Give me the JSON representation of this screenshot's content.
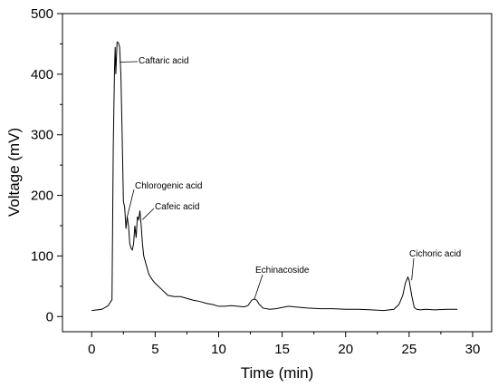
{
  "chart_data": {
    "type": "line",
    "title": "",
    "xlabel": "Time (min)",
    "ylabel": "Voltage (mV)",
    "xlim": [
      -2.3,
      31.5
    ],
    "ylim": [
      -25,
      500
    ],
    "xticks": [
      0,
      5,
      10,
      15,
      20,
      25,
      30
    ],
    "yticks": [
      0,
      100,
      200,
      300,
      400,
      500
    ],
    "grid": false,
    "legend": "none",
    "line_color": "#000000",
    "series": [
      {
        "x": [
          0,
          0.8,
          1.3,
          1.6,
          1.7,
          1.8,
          1.85,
          1.9,
          2.0,
          2.1,
          2.2,
          2.3,
          2.4,
          2.5,
          2.6,
          2.7,
          2.8,
          2.9,
          3.0,
          3.1,
          3.2,
          3.3,
          3.4,
          3.5,
          3.6,
          3.7,
          3.8,
          3.9,
          4.0,
          4.1,
          4.3,
          4.5,
          4.8,
          5.0,
          5.5,
          6.0,
          6.5,
          7.0,
          7.5,
          8.0,
          8.5,
          9.0,
          9.5,
          10.0,
          10.5,
          11.0,
          11.5,
          12.0,
          12.3,
          12.6,
          12.8,
          13.0,
          13.2,
          13.5,
          14.0,
          14.5,
          15.0,
          15.5,
          16.0,
          17.0,
          18.0,
          19.0,
          20.0,
          21.0,
          22.0,
          23.0,
          23.8,
          24.2,
          24.5,
          24.7,
          24.9,
          25.0,
          25.2,
          25.4,
          25.6,
          25.9,
          26.3,
          27.0,
          28.0,
          28.8
        ],
        "y": [
          10,
          12,
          18,
          28,
          280,
          410,
          445,
          400,
          453,
          452,
          445,
          400,
          300,
          190,
          180,
          145,
          165,
          150,
          120,
          113,
          110,
          120,
          150,
          130,
          165,
          160,
          175,
          150,
          120,
          100,
          85,
          70,
          60,
          55,
          45,
          35,
          33,
          33,
          30,
          27,
          25,
          22,
          20,
          17,
          17,
          18,
          17,
          16,
          18,
          27,
          29,
          27,
          20,
          14,
          12,
          13,
          15,
          17,
          16,
          14,
          13,
          13,
          12,
          12,
          11,
          10,
          12,
          20,
          35,
          55,
          65,
          60,
          35,
          15,
          12,
          11,
          12,
          11,
          12,
          12
        ]
      }
    ],
    "annotations": [
      {
        "text": "Caftaric acid",
        "x": 2.2,
        "y": 420
      },
      {
        "text": "Chlorogenic acid",
        "x": 2.8,
        "y": 165
      },
      {
        "text": "Cafeic acid",
        "x": 4.0,
        "y": 160
      },
      {
        "text": "Echinacoside",
        "x": 12.8,
        "y": 28
      },
      {
        "text": "Cichoric acid",
        "x": 25.2,
        "y": 60
      }
    ]
  }
}
